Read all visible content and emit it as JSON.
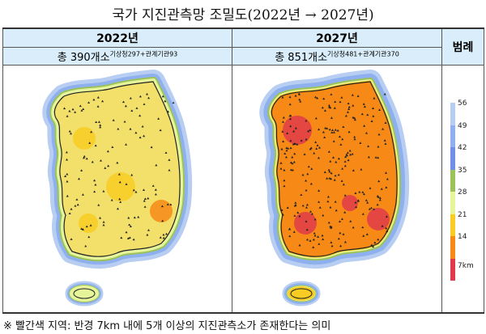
{
  "title": "국가 지진관측망 조밀도(2022년 → 2027년)",
  "columns": [
    {
      "year": "2022년",
      "total": "총 390개소",
      "detail": "기상청297+관계기관93",
      "density": "low"
    },
    {
      "year": "2027년",
      "total": "총 851개소",
      "detail": "기상청481+관계기관370",
      "density": "high"
    }
  ],
  "legend": {
    "title": "범례",
    "labels": [
      "56",
      "49",
      "42",
      "35",
      "28",
      "21",
      "14",
      "7km"
    ],
    "colors": [
      "#b8cdf2",
      "#8fb0ee",
      "#6f8fe6",
      "#9cc25a",
      "#e6f49a",
      "#f8cc22",
      "#f78a16",
      "#e03a4a"
    ]
  },
  "note": "※ 빨간색 지역: 반경 7km 내에 5개 이상의 지진관측소가 존재한다는 의미"
}
